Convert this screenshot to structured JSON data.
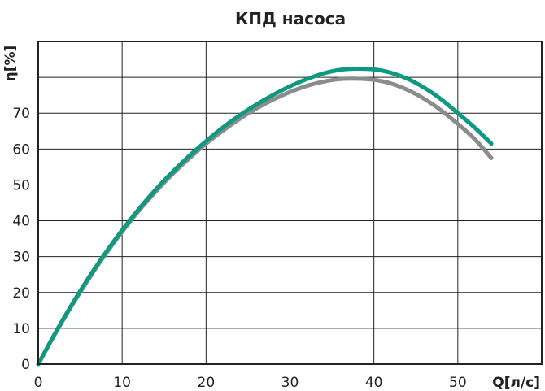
{
  "chart_data": {
    "type": "line",
    "title": "КПД насоса",
    "xlabel": "Q[л/с]",
    "ylabel": "η[%]",
    "xlim": [
      0,
      60
    ],
    "ylim": [
      0,
      90
    ],
    "x_ticks": [
      0,
      10,
      20,
      30,
      40,
      50
    ],
    "y_ticks": [
      0,
      10,
      20,
      30,
      40,
      50,
      60,
      70
    ],
    "grid": true,
    "legend": "none",
    "series": [
      {
        "color": "#0f9a80",
        "x": [
          0,
          2,
          4,
          6,
          8,
          10,
          12,
          14,
          16,
          18,
          20,
          22,
          24,
          26,
          28,
          30,
          32,
          34,
          36,
          38,
          40,
          42,
          44,
          46,
          48,
          50,
          52,
          54
        ],
        "y": [
          0,
          8.6,
          16.6,
          24.1,
          31.0,
          37.4,
          43.3,
          48.7,
          53.6,
          58.1,
          62.2,
          66.0,
          69.4,
          72.4,
          75.1,
          77.5,
          79.5,
          81.1,
          82.1,
          82.4,
          82.2,
          81.3,
          79.6,
          77.1,
          73.9,
          70.0,
          66.0,
          61.5
        ]
      },
      {
        "color": "#8c8c8c",
        "x": [
          0,
          2,
          4,
          6,
          8,
          10,
          12,
          14,
          16,
          18,
          20,
          22,
          24,
          26,
          28,
          30,
          32,
          34,
          36,
          38,
          40,
          42,
          44,
          46,
          48,
          50,
          52,
          54
        ],
        "y": [
          0,
          8.4,
          16.3,
          23.7,
          30.6,
          36.9,
          42.8,
          48.1,
          53.0,
          57.4,
          61.5,
          65.1,
          68.4,
          71.3,
          73.8,
          75.9,
          77.6,
          78.8,
          79.5,
          79.6,
          79.3,
          78.3,
          76.5,
          74.0,
          70.8,
          67.0,
          62.8,
          57.5
        ]
      }
    ]
  }
}
